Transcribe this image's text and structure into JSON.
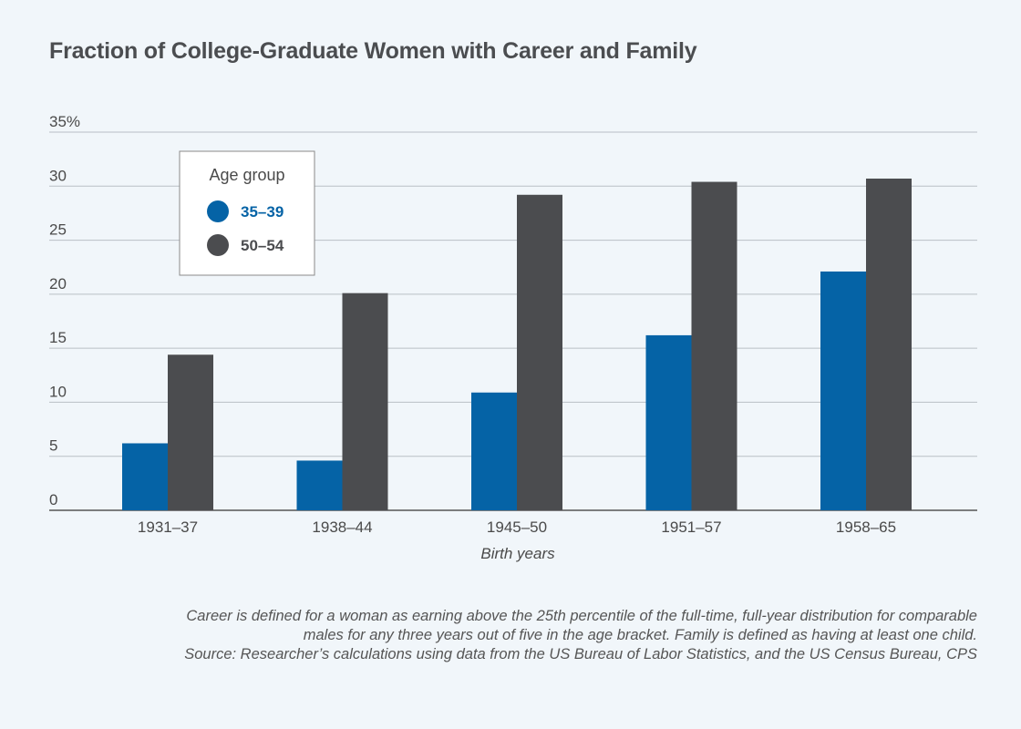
{
  "chart_data": {
    "type": "bar",
    "title": "Fraction of College-Graduate Women with Career and Family",
    "xlabel": "Birth years",
    "ylabel": "",
    "categories": [
      "1931–37",
      "1938–44",
      "1945–50",
      "1951–57",
      "1958–65"
    ],
    "series": [
      {
        "name": "35–39",
        "color": "#0563a6",
        "values": [
          6.2,
          4.6,
          10.9,
          16.2,
          22.1
        ]
      },
      {
        "name": "50–54",
        "color": "#4b4c4f",
        "values": [
          14.4,
          20.1,
          29.2,
          30.4,
          30.7
        ]
      }
    ],
    "ylim": [
      0,
      35
    ],
    "yticks": [
      0,
      5,
      10,
      15,
      20,
      25,
      30,
      35
    ],
    "ytick_labels": [
      "0",
      "5",
      "10",
      "15",
      "20",
      "25",
      "30",
      "35%"
    ],
    "grid": true,
    "legend": {
      "title": "Age group",
      "placement": "top-left"
    }
  },
  "footnote": {
    "lines": [
      "Career is defined for a woman as earning above the 25th percentile of the full-time, full-year distribution for comparable",
      "males for any three years out of five in the age bracket. Family is defined as having at least one child.",
      "Source: Researcher’s calculations using data from the US Bureau of Labor Statistics, and the US Census Bureau, CPS"
    ]
  }
}
